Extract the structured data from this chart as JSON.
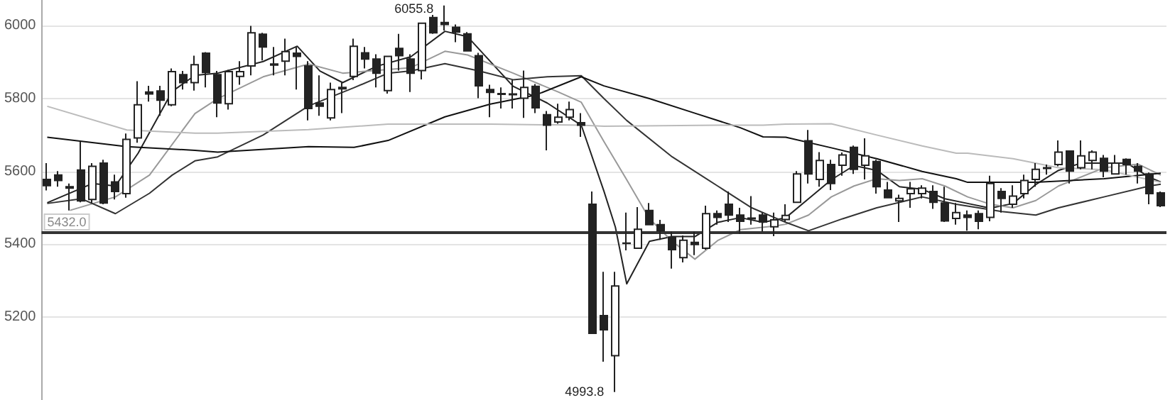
{
  "chart_data": {
    "type": "candlestick",
    "categories": [
      null,
      null,
      null,
      null,
      null,
      null,
      null,
      null,
      null,
      null,
      null,
      null,
      null,
      null,
      null,
      null,
      null,
      null,
      null,
      null,
      null,
      null,
      null,
      null,
      null,
      null,
      null,
      null,
      null,
      null,
      null,
      null,
      null,
      null,
      null,
      null,
      null,
      null,
      null,
      null,
      null,
      null,
      null,
      null,
      null,
      null,
      null,
      null,
      null,
      null,
      null,
      null,
      null,
      null,
      null,
      null,
      null,
      null,
      null,
      null,
      null,
      null,
      null,
      null,
      null,
      null,
      null,
      null,
      null,
      null,
      null,
      null,
      null,
      null,
      null,
      null,
      null,
      null,
      null,
      null,
      null,
      null,
      null,
      null,
      null,
      null,
      null,
      null,
      null,
      null,
      null,
      null,
      null,
      null,
      null,
      null,
      null,
      null,
      null
    ],
    "series": [
      {
        "color": "#222222",
        "ohlc": [
          [
            5578,
            5623,
            5548,
            5561
          ],
          [
            5590,
            5601,
            5558,
            5575
          ],
          [
            5558,
            5567,
            5493,
            5554
          ],
          [
            5604,
            5682,
            5515,
            5519
          ],
          [
            5523,
            5623,
            5513,
            5614
          ],
          [
            5623,
            5632,
            5510,
            5513
          ],
          [
            5571,
            5591,
            5523,
            5545
          ],
          [
            5539,
            5704,
            5528,
            5688
          ],
          [
            5692,
            5848,
            5679,
            5783
          ],
          [
            5818,
            5835,
            5792,
            5813
          ],
          [
            5821,
            5835,
            5753,
            5796
          ],
          [
            5783,
            5883,
            5779,
            5874
          ],
          [
            5866,
            5876,
            5825,
            5844
          ],
          [
            5844,
            5918,
            5822,
            5893
          ],
          [
            5925,
            5928,
            5831,
            5872
          ],
          [
            5866,
            5876,
            5749,
            5788
          ],
          [
            5786,
            5879,
            5770,
            5874
          ],
          [
            5861,
            5903,
            5838,
            5874
          ],
          [
            5890,
            6000,
            5864,
            5981
          ],
          [
            5977,
            5981,
            5905,
            5942
          ],
          [
            5895,
            5942,
            5864,
            5892
          ],
          [
            5903,
            5965,
            5864,
            5929
          ],
          [
            5925,
            5942,
            5825,
            5916
          ],
          [
            5890,
            5903,
            5740,
            5773
          ],
          [
            5788,
            5864,
            5753,
            5779
          ],
          [
            5747,
            5844,
            5740,
            5825
          ],
          [
            5831,
            5844,
            5760,
            5827
          ],
          [
            5861,
            5965,
            5851,
            5944
          ],
          [
            5926,
            5942,
            5883,
            5909
          ],
          [
            5909,
            5922,
            5831,
            5870
          ],
          [
            5822,
            5918,
            5814,
            5916
          ],
          [
            5938,
            5978,
            5877,
            5918
          ],
          [
            5909,
            5922,
            5818,
            5870
          ],
          [
            5877,
            6007,
            5853,
            6007
          ],
          [
            6023,
            6030,
            5978,
            5981
          ],
          [
            6009,
            6055.8,
            5987,
            6004
          ],
          [
            5996,
            6004,
            5955,
            5983
          ],
          [
            5978,
            5983,
            5929,
            5931
          ],
          [
            5918,
            5926,
            5801,
            5835
          ],
          [
            5825,
            5838,
            5749,
            5817
          ],
          [
            5814,
            5831,
            5773,
            5812
          ],
          [
            5811,
            5851,
            5773,
            5813
          ],
          [
            5801,
            5877,
            5747,
            5831
          ],
          [
            5834,
            5840,
            5760,
            5775
          ],
          [
            5756,
            5766,
            5658,
            5727
          ],
          [
            5736,
            5786,
            5731,
            5749
          ],
          [
            5749,
            5792,
            5740,
            5770
          ],
          [
            5734,
            5760,
            5695,
            5727
          ],
          [
            5510,
            5545,
            5155,
            5155
          ],
          [
            5204,
            5324,
            5077,
            5165
          ],
          [
            5094,
            5324,
            4993.8,
            5285
          ],
          [
            5403,
            5487,
            5383,
            5402
          ],
          [
            5389,
            5502,
            5389,
            5441
          ],
          [
            5493,
            5513,
            5454,
            5454
          ],
          [
            5454,
            5467,
            5412,
            5437
          ],
          [
            5419,
            5435,
            5333,
            5385
          ],
          [
            5363,
            5424,
            5350,
            5411
          ],
          [
            5405,
            5435,
            5370,
            5399
          ],
          [
            5389,
            5506,
            5385,
            5484
          ],
          [
            5484,
            5493,
            5454,
            5474
          ],
          [
            5510,
            5545,
            5461,
            5480
          ],
          [
            5480,
            5500,
            5428,
            5463
          ],
          [
            5472,
            5532,
            5454,
            5470
          ],
          [
            5480,
            5487,
            5435,
            5461
          ],
          [
            5448,
            5487,
            5422,
            5467
          ],
          [
            5468,
            5510,
            5461,
            5479
          ],
          [
            5515,
            5601,
            5515,
            5593
          ],
          [
            5684,
            5714,
            5567,
            5593
          ],
          [
            5578,
            5653,
            5558,
            5630
          ],
          [
            5619,
            5632,
            5549,
            5567
          ],
          [
            5617,
            5652,
            5588,
            5645
          ],
          [
            5666,
            5671,
            5593,
            5606
          ],
          [
            5617,
            5691,
            5578,
            5643
          ],
          [
            5627,
            5632,
            5539,
            5558
          ],
          [
            5549,
            5571,
            5526,
            5528
          ],
          [
            5519,
            5536,
            5461,
            5526
          ],
          [
            5539,
            5571,
            5500,
            5552
          ],
          [
            5539,
            5562,
            5526,
            5554
          ],
          [
            5545,
            5562,
            5497,
            5515
          ],
          [
            5513,
            5558,
            5461,
            5464
          ],
          [
            5471,
            5513,
            5454,
            5487
          ],
          [
            5480,
            5493,
            5437,
            5474
          ],
          [
            5484,
            5493,
            5441,
            5463
          ],
          [
            5474,
            5588,
            5463,
            5567
          ],
          [
            5545,
            5554,
            5487,
            5526
          ],
          [
            5510,
            5562,
            5500,
            5532
          ],
          [
            5539,
            5591,
            5526,
            5575
          ],
          [
            5578,
            5623,
            5558,
            5606
          ],
          [
            5608,
            5619,
            5591,
            5610
          ],
          [
            5619,
            5685,
            5614,
            5653
          ],
          [
            5656,
            5658,
            5567,
            5601
          ],
          [
            5610,
            5685,
            5606,
            5643
          ],
          [
            5630,
            5658,
            5606,
            5653
          ],
          [
            5636,
            5645,
            5584,
            5601
          ],
          [
            5593,
            5645,
            5591,
            5623
          ],
          [
            5633,
            5636,
            5591,
            5619
          ],
          [
            5614,
            5623,
            5567,
            5601
          ],
          [
            5593,
            5597,
            5510,
            5539
          ],
          [
            5541,
            5545,
            5502,
            5506
          ]
        ]
      },
      {
        "type": "line",
        "color": "#222222",
        "values": [
          5514,
          null,
          null,
          null,
          5567,
          null,
          5560,
          null,
          5650,
          null,
          null,
          5820,
          null,
          5864,
          null,
          5870,
          null,
          null,
          null,
          5902,
          null,
          null,
          5944,
          null,
          5876,
          null,
          5844,
          null,
          null,
          5889,
          null,
          null,
          5915,
          null,
          null,
          5985,
          null,
          5970,
          null,
          null,
          null,
          5834,
          null,
          null,
          5788,
          null,
          null,
          5727,
          null,
          5545,
          5447,
          5291,
          null,
          5408,
          null,
          5421,
          null,
          5421,
          null,
          5460,
          null,
          5473,
          null,
          5460,
          null,
          5473,
          null,
          5525,
          null,
          5577,
          null,
          5616,
          null,
          5603,
          null,
          5558,
          null,
          5551,
          null,
          5525,
          null,
          5512,
          null,
          5499,
          null,
          5512,
          null,
          5564,
          null,
          5603,
          null,
          5623,
          null,
          5623,
          null,
          5623,
          null,
          5584,
          5571
        ]
      },
      {
        "type": "line",
        "color": "#999999",
        "values": [
          null,
          null,
          5493,
          null,
          null,
          null,
          5530,
          null,
          null,
          5590,
          null,
          null,
          null,
          5759,
          null,
          5800,
          null,
          null,
          null,
          5860,
          null,
          null,
          null,
          5895,
          null,
          null,
          5870,
          null,
          null,
          null,
          5880,
          null,
          5885,
          null,
          null,
          5930,
          null,
          5920,
          null,
          null,
          null,
          5870,
          null,
          null,
          null,
          5818,
          null,
          5790,
          null,
          5682,
          null,
          5577,
          null,
          5470,
          null,
          5408,
          null,
          5359,
          null,
          5410,
          null,
          5440,
          null,
          null,
          5450,
          5455,
          null,
          5480,
          null,
          5530,
          null,
          5560,
          null,
          5580,
          null,
          5575,
          null,
          5580,
          null,
          5560,
          null,
          5530,
          null,
          5510,
          null,
          5500,
          null,
          5520,
          null,
          5560,
          null,
          null,
          null,
          5610,
          null,
          null,
          5620,
          null,
          5590
        ]
      },
      {
        "type": "line",
        "color": "#333333",
        "values": [
          5512,
          null,
          null,
          5525,
          null,
          null,
          5484,
          null,
          null,
          5540,
          null,
          5590,
          null,
          5629,
          null,
          5640,
          null,
          null,
          null,
          5700,
          null,
          null,
          null,
          5780,
          null,
          null,
          null,
          5830,
          null,
          null,
          5870,
          null,
          5876,
          null,
          null,
          5896,
          null,
          null,
          5876,
          null,
          null,
          5852,
          null,
          null,
          5860,
          null,
          null,
          5863,
          null,
          5800,
          null,
          5740,
          null,
          null,
          null,
          5640,
          null,
          null,
          null,
          5560,
          null,
          null,
          5500,
          null,
          null,
          5460,
          null,
          5437,
          null,
          null,
          5470,
          null,
          null,
          5500,
          null,
          null,
          null,
          5530,
          null,
          null,
          5510,
          null,
          null,
          null,
          5490,
          null,
          null,
          5480,
          null,
          5500,
          null,
          null,
          null,
          5530,
          null,
          null,
          null,
          5560,
          5565
        ]
      },
      {
        "type": "line",
        "color": "#111111",
        "values": [
          5694,
          null,
          null,
          null,
          null,
          null,
          null,
          5668,
          null,
          null,
          null,
          null,
          null,
          5658,
          null,
          5653,
          null,
          null,
          null,
          null,
          null,
          null,
          null,
          5668,
          null,
          null,
          null,
          5666,
          null,
          null,
          5685,
          null,
          null,
          null,
          null,
          5750,
          null,
          null,
          null,
          5785,
          null,
          null,
          null,
          5810,
          null,
          null,
          null,
          5860,
          null,
          5835,
          null,
          null,
          null,
          5800,
          null,
          null,
          null,
          5760,
          null,
          null,
          null,
          5720,
          null,
          5695,
          null,
          5694,
          null,
          null,
          null,
          5665,
          null,
          null,
          null,
          5635,
          null,
          null,
          null,
          5600,
          null,
          null,
          5580,
          5570,
          null,
          null,
          null,
          null,
          null,
          5570,
          null,
          null,
          null,
          null,
          null,
          5580,
          null,
          null,
          null,
          null,
          5595
        ]
      },
      {
        "type": "line",
        "color": "#bbbbbb",
        "values": [
          5779,
          null,
          null,
          null,
          null,
          null,
          null,
          5714,
          null,
          null,
          null,
          null,
          null,
          5705,
          null,
          5705,
          null,
          null,
          null,
          null,
          null,
          null,
          null,
          5715,
          null,
          null,
          null,
          null,
          null,
          null,
          5730,
          null,
          null,
          null,
          null,
          null,
          null,
          null,
          null,
          5730,
          null,
          null,
          null,
          null,
          null,
          null,
          null,
          5727,
          null,
          5724,
          null,
          null,
          null,
          null,
          null,
          null,
          null,
          null,
          null,
          5727,
          null,
          null,
          null,
          5727,
          null,
          5730,
          null,
          null,
          null,
          5731,
          null,
          null,
          null,
          5700,
          null,
          null,
          null,
          5670,
          null,
          null,
          5650,
          5650,
          null,
          null,
          null,
          5635,
          null,
          null,
          null,
          5610,
          null,
          null,
          null,
          5605,
          null,
          null,
          null,
          null,
          5570
        ]
      }
    ],
    "ylim": [
      4972,
      6071
    ],
    "yticks": [
      5200,
      5400,
      5600,
      5800,
      6000
    ],
    "tick_labels": "y",
    "grid": "y",
    "line_style": "solid",
    "ref_lines": [
      {
        "axis": "y",
        "value": 5432,
        "label": "5432.0",
        "color": "#333333"
      }
    ],
    "annotations": [
      "6055.8",
      "4993.8"
    ]
  }
}
